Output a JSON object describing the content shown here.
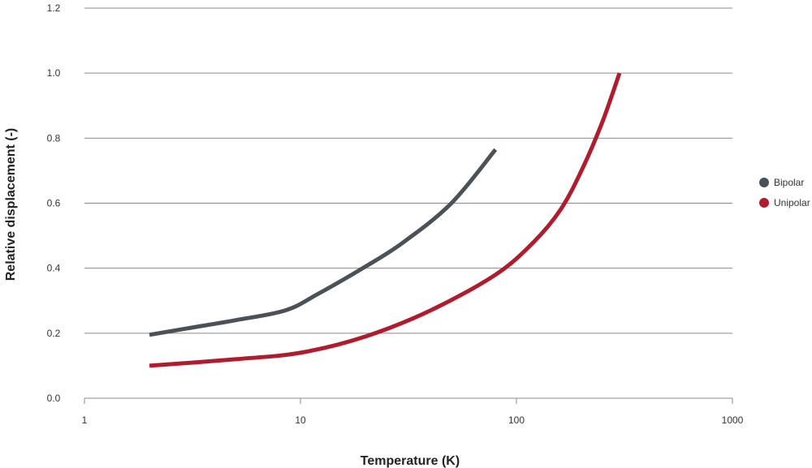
{
  "chart_data": {
    "type": "line",
    "title": "",
    "xlabel": "Temperature (K)",
    "ylabel": "Relative displacement  (-)",
    "x_scale": "log",
    "xlim": [
      1,
      1000
    ],
    "ylim": [
      0,
      1.2
    ],
    "x_ticks": [
      "1",
      "10",
      "100",
      "1000"
    ],
    "y_ticks": [
      "0.0",
      "0.2",
      "0.4",
      "0.6",
      "0.8",
      "1.0",
      "1.2"
    ],
    "grid": "horizontal",
    "legend_position": "right",
    "series": [
      {
        "name": "Bipolar",
        "color": "#4a5157",
        "x": [
          2,
          3,
          5,
          8.5,
          12,
          20,
          30,
          50,
          80
        ],
        "y": [
          0.195,
          0.215,
          0.24,
          0.27,
          0.32,
          0.405,
          0.48,
          0.6,
          0.765
        ]
      },
      {
        "name": "Unipolar",
        "color": "#b01c2e",
        "x": [
          2,
          5,
          10,
          20,
          40,
          80,
          120,
          160,
          200,
          250,
          300
        ],
        "y": [
          0.1,
          0.12,
          0.14,
          0.19,
          0.27,
          0.38,
          0.48,
          0.58,
          0.7,
          0.85,
          1.0
        ]
      }
    ]
  }
}
